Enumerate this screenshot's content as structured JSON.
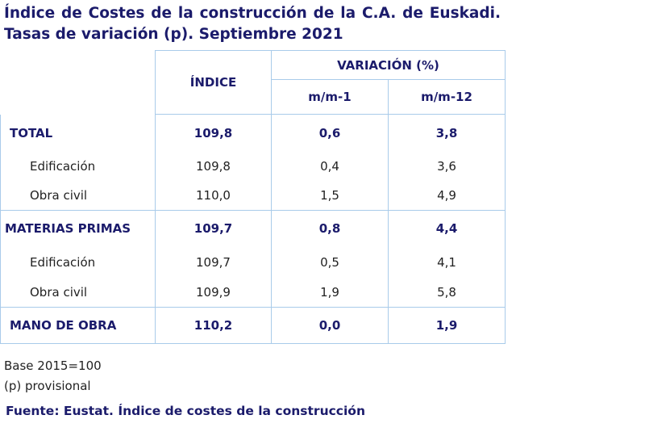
{
  "title": "Índice de Costes de la construcción de la C.A. de Euskadi. Tasas de variación (p). Septiembre 2021",
  "table": {
    "header": {
      "indice": "ÍNDICE",
      "variacion": "VARIACIÓN (%)",
      "mm1": "m/m-1",
      "mm12": "m/m-12"
    },
    "rows": [
      [
        "TOTAL",
        "109,8",
        "0,6",
        "3,8"
      ],
      [
        "Edificación",
        "109,8",
        "0,4",
        "3,6"
      ],
      [
        "Obra civil",
        "110,0",
        "1,5",
        "4,9"
      ],
      [
        "MATERIAS PRIMAS",
        "109,7",
        "0,8",
        "4,4"
      ],
      [
        "Edificación",
        "109,7",
        "0,5",
        "4,1"
      ],
      [
        "Obra civil",
        "109,9",
        "1,9",
        "5,8"
      ],
      [
        "MANO DE OBRA",
        "110,2",
        "0,0",
        "1,9"
      ]
    ]
  },
  "notes": [
    "Base 2015=100",
    "(p) provisional"
  ],
  "source": "Fuente: Eustat. Índice de costes de la construcción"
}
